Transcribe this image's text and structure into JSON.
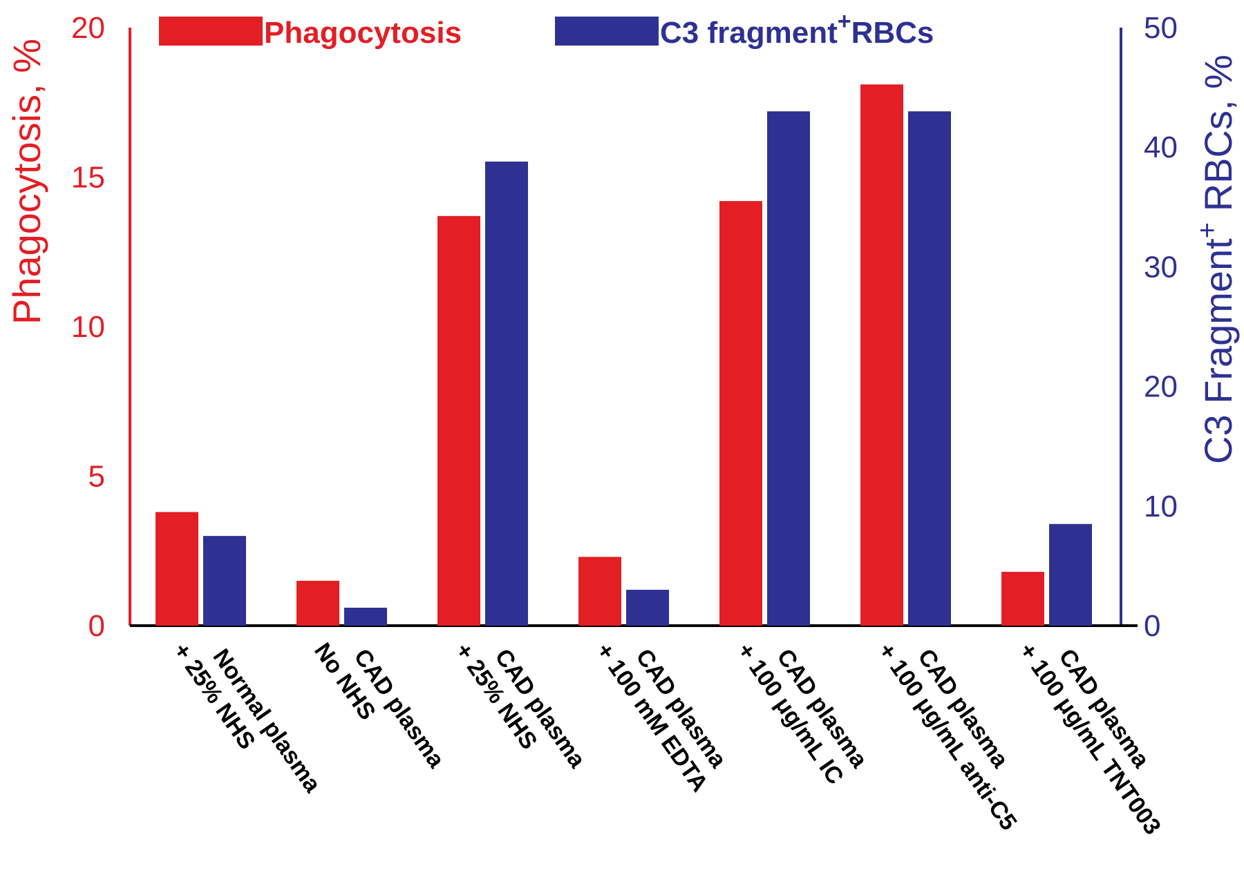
{
  "chart_data": {
    "type": "bar",
    "categories": [
      [
        "Normal plasma",
        "+ 25% NHS"
      ],
      [
        "CAD plasma",
        "No NHS"
      ],
      [
        "CAD plasma",
        "+ 25% NHS"
      ],
      [
        "CAD plasma",
        "+ 100 mM EDTA"
      ],
      [
        "CAD plasma",
        "+ 100 μg/mL IC"
      ],
      [
        "CAD plasma",
        "+ 100 μg/mL anti-C5"
      ],
      [
        "CAD plasma",
        "+ 100 μg/mL TNT003"
      ]
    ],
    "series": [
      {
        "name": "Phagocytosis",
        "axis": "left",
        "color": "#e31e24",
        "values": [
          3.8,
          1.5,
          13.7,
          2.3,
          14.2,
          18.1,
          1.8
        ]
      },
      {
        "name": "C3 fragment",
        "name_sup": "+",
        "name_tail": "RBCs",
        "axis": "right",
        "color": "#2e3192",
        "values": [
          7.5,
          1.5,
          38.8,
          3.0,
          43.0,
          43.0,
          8.5
        ]
      }
    ],
    "left_axis": {
      "label": "Phagocytosis,  %",
      "ylim": [
        0,
        20
      ],
      "ticks": [
        "0",
        "5",
        "10",
        "15",
        "20"
      ],
      "color": "#e31e24"
    },
    "right_axis": {
      "label_main": "C3 Fragment",
      "label_sup": "+",
      "label_tail": " RBCs,  %",
      "ylim": [
        0,
        50
      ],
      "ticks": [
        "0",
        "10",
        "20",
        "30",
        "40",
        "50"
      ],
      "color": "#2e3192"
    },
    "legend_position": "top",
    "grid": false
  }
}
